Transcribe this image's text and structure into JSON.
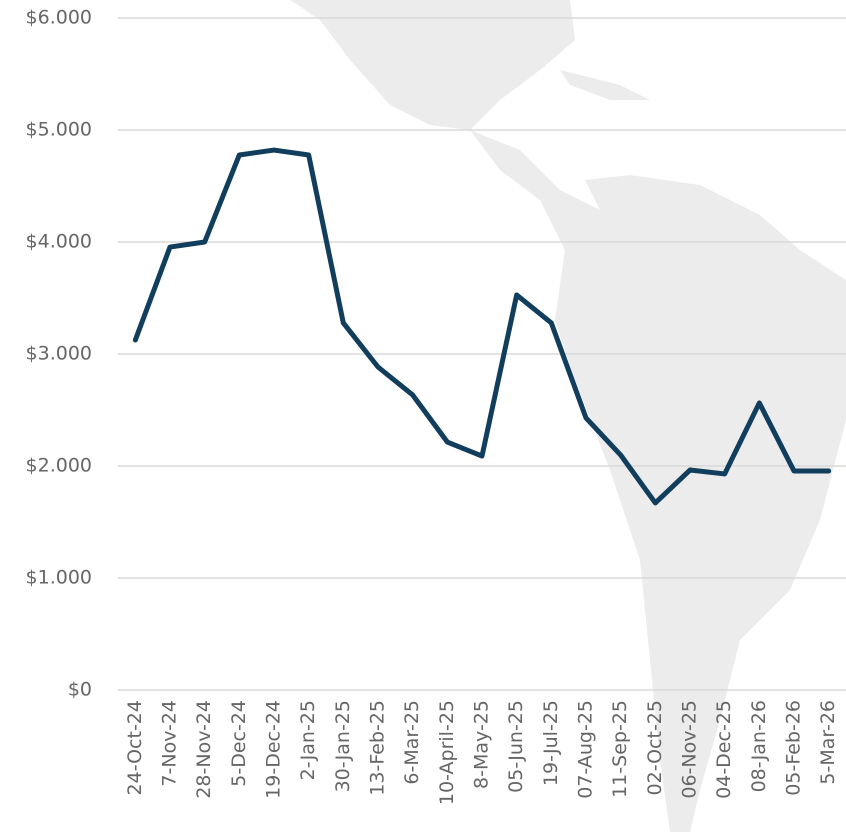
{
  "chart_data": {
    "type": "line",
    "categories": [
      "24-Oct-24",
      "7-Nov-24",
      "28-Nov-24",
      "5-Dec-24",
      "19-Dec-24",
      "2-Jan-25",
      "30-Jan-25",
      "13-Feb-25",
      "6-Mar-25",
      "10-April-25",
      "8-May-25",
      "05-Jun-25",
      "19-Jul-25",
      "07-Aug-25",
      "11-Sep-25",
      "02-Oct-25",
      "06-Nov-25",
      "04-Dec-25",
      "08-Jan-26",
      "05-Feb-26",
      "5-Mar-26"
    ],
    "values": [
      3125,
      3955,
      4000,
      4777,
      4821,
      4777,
      3277,
      2884,
      2634,
      2214,
      2089,
      3527,
      3277,
      2429,
      2098,
      1670,
      1964,
      1929,
      2563,
      1955,
      1955
    ],
    "color": "#123e5e",
    "ylim": [
      0,
      6000
    ],
    "yticks": [
      {
        "value": 0,
        "label": "$0"
      },
      {
        "value": 1000,
        "label": "$1.000"
      },
      {
        "value": 2000,
        "label": "$2.000"
      },
      {
        "value": 3000,
        "label": "$3.000"
      },
      {
        "value": 4000,
        "label": "$4.000"
      },
      {
        "value": 5000,
        "label": "$5.000"
      },
      {
        "value": 6000,
        "label": "$6.000"
      }
    ],
    "grid": true
  }
}
